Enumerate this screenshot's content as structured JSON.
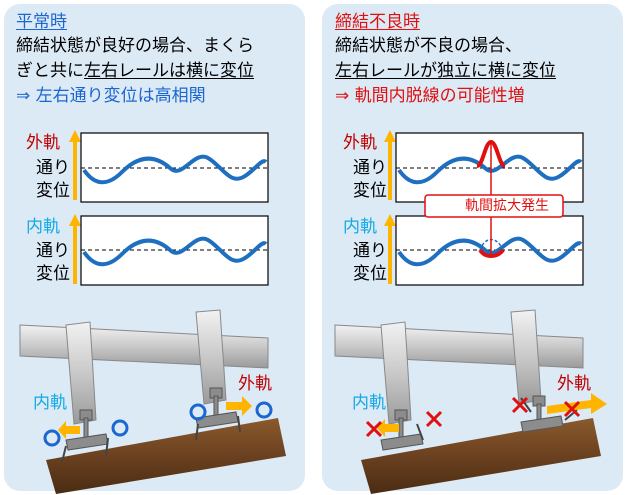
{
  "left": {
    "title": "平常時",
    "line1": "締結状態が良好の場合、まくら",
    "line2_pre": "ぎと共に",
    "line2_ul": "左右レールは横に変位",
    "line3_pre": "⇒ 左右通り変位は",
    "line3_hl": "高相関",
    "chart_top_label": "外軌",
    "chart_bottom_label": "内軌",
    "axis_label_1": "通り",
    "axis_label_2": "変位",
    "inner_rail_label": "内軌",
    "outer_rail_label": "外軌"
  },
  "right": {
    "title": "締結不良時",
    "line1": "締結状態が不良の場合、",
    "line2_ul": "左右レールが独立に横に変位",
    "line3": "⇒ 軌間内脱線の可能性増",
    "chart_top_label": "外軌",
    "chart_bottom_label": "内軌",
    "axis_label_1": "通り",
    "axis_label_2": "変位",
    "callout": "軌間拡大発生",
    "inner_rail_label": "内軌",
    "outer_rail_label": "外軌"
  },
  "colors": {
    "wave": "#1f6fc0",
    "anomaly": "#e01010",
    "accent_orange": "#ffb400",
    "inner": "#12a9e5",
    "outer": "#c00000",
    "circle": "#1b66d1"
  }
}
